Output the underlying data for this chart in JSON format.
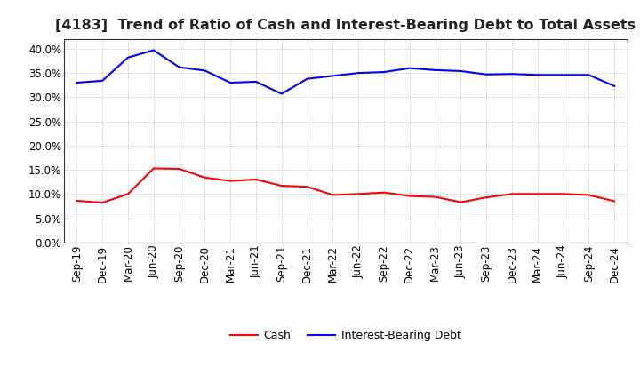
{
  "title": "[4183]  Trend of Ratio of Cash and Interest-Bearing Debt to Total Assets",
  "x_labels": [
    "Sep-19",
    "Dec-19",
    "Mar-20",
    "Jun-20",
    "Sep-20",
    "Dec-20",
    "Mar-21",
    "Jun-21",
    "Sep-21",
    "Dec-21",
    "Mar-22",
    "Jun-22",
    "Sep-22",
    "Dec-22",
    "Mar-23",
    "Jun-23",
    "Sep-23",
    "Dec-23",
    "Mar-24",
    "Jun-24",
    "Sep-24",
    "Dec-24"
  ],
  "cash": [
    0.086,
    0.082,
    0.1,
    0.153,
    0.152,
    0.134,
    0.127,
    0.13,
    0.117,
    0.115,
    0.098,
    0.1,
    0.103,
    0.096,
    0.094,
    0.083,
    0.093,
    0.1,
    0.1,
    0.1,
    0.098,
    0.085
  ],
  "ibd": [
    0.33,
    0.334,
    0.382,
    0.397,
    0.362,
    0.355,
    0.33,
    0.332,
    0.307,
    0.338,
    0.344,
    0.35,
    0.352,
    0.36,
    0.356,
    0.354,
    0.347,
    0.348,
    0.346,
    0.346,
    0.346,
    0.323
  ],
  "cash_color": "#ff0000",
  "ibd_color": "#0000ff",
  "ylim": [
    0.0,
    0.42
  ],
  "yticks": [
    0.0,
    0.05,
    0.1,
    0.15,
    0.2,
    0.25,
    0.3,
    0.35,
    0.4
  ],
  "bg_color": "#ffffff",
  "grid_color": "#bbbbbb",
  "title_fontsize": 11.5,
  "tick_fontsize": 8.5,
  "legend_cash": "Cash",
  "legend_ibd": "Interest-Bearing Debt"
}
